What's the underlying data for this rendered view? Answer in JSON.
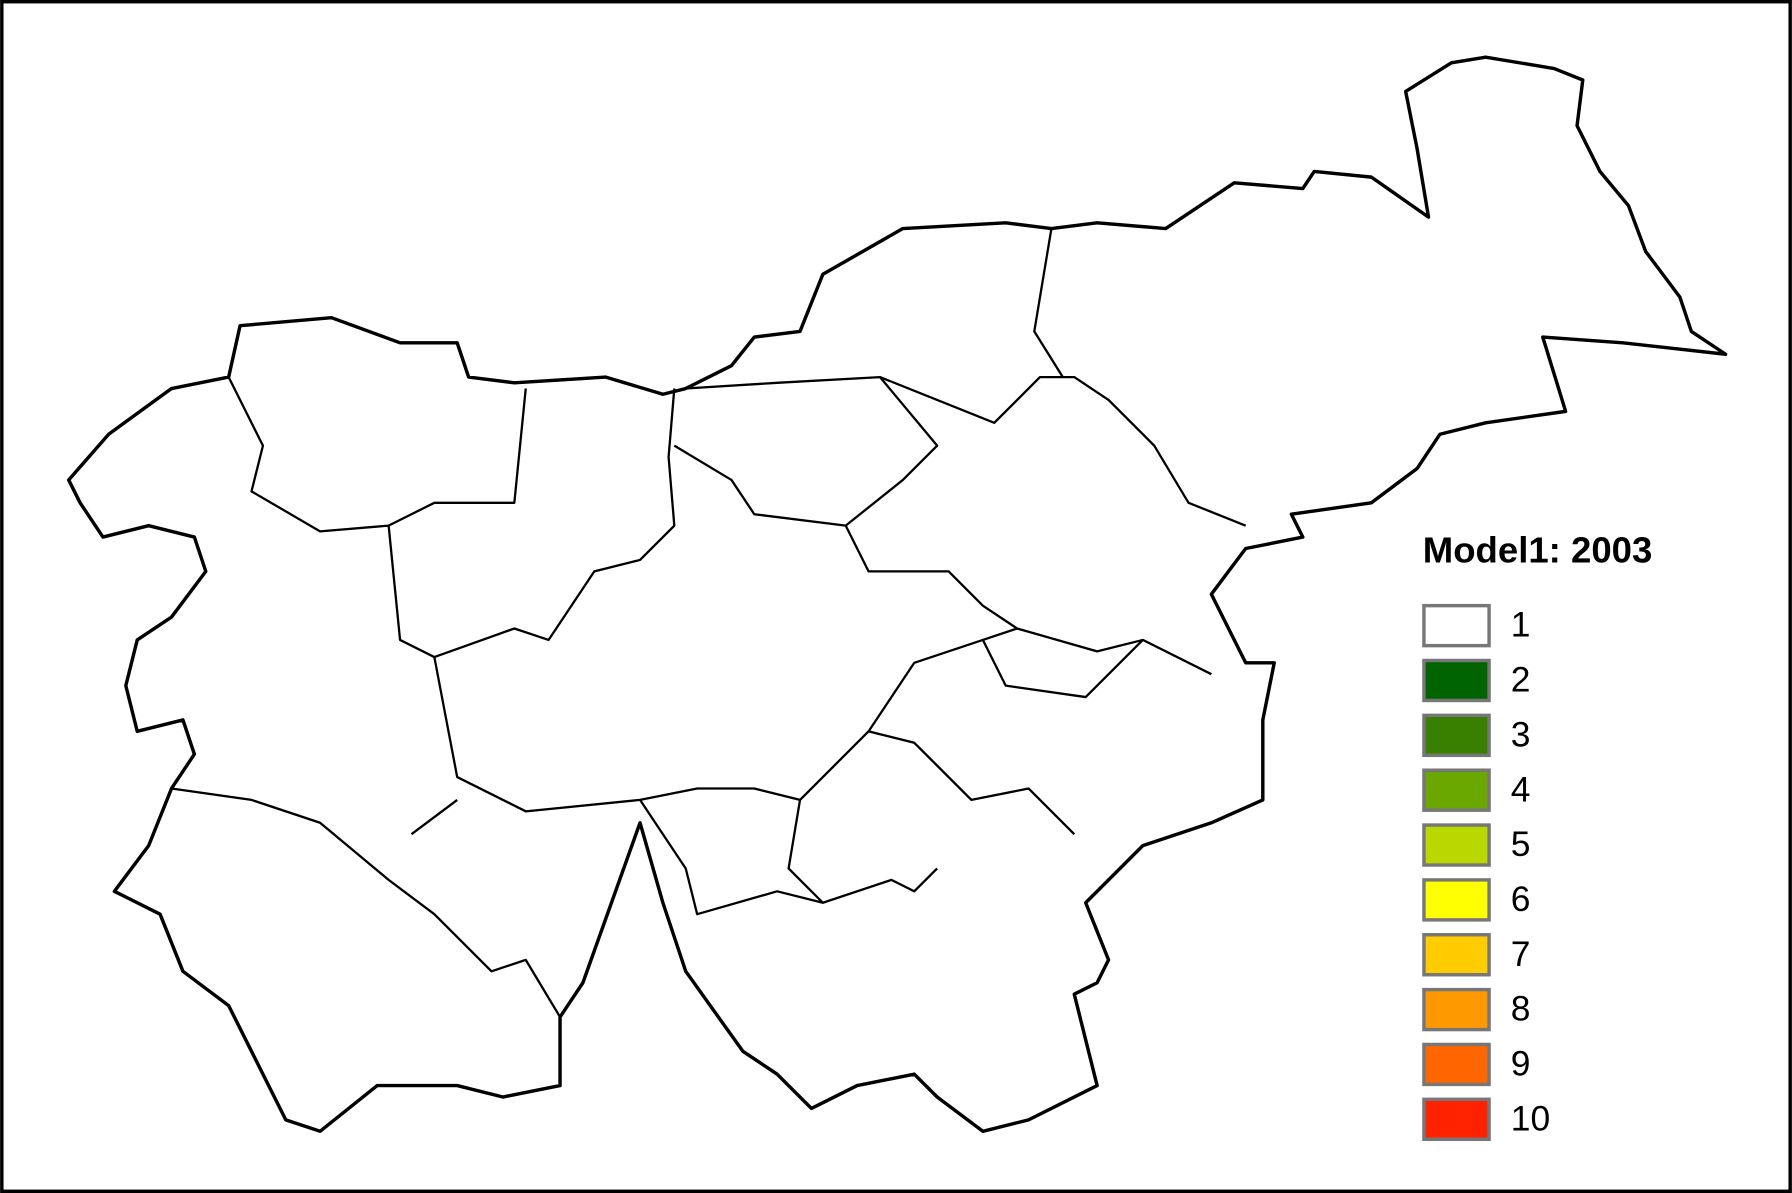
{
  "legend": {
    "title": "Model1: 2003",
    "items": [
      {
        "label": "1",
        "color": "#ffffff"
      },
      {
        "label": "2",
        "color": "#006400"
      },
      {
        "label": "3",
        "color": "#3a8000"
      },
      {
        "label": "4",
        "color": "#6aa800"
      },
      {
        "label": "5",
        "color": "#b8d800"
      },
      {
        "label": "6",
        "color": "#ffff00"
      },
      {
        "label": "7",
        "color": "#ffcc00"
      },
      {
        "label": "8",
        "color": "#ff9900"
      },
      {
        "label": "9",
        "color": "#ff6600"
      },
      {
        "label": "10",
        "color": "#ff2200"
      }
    ]
  }
}
